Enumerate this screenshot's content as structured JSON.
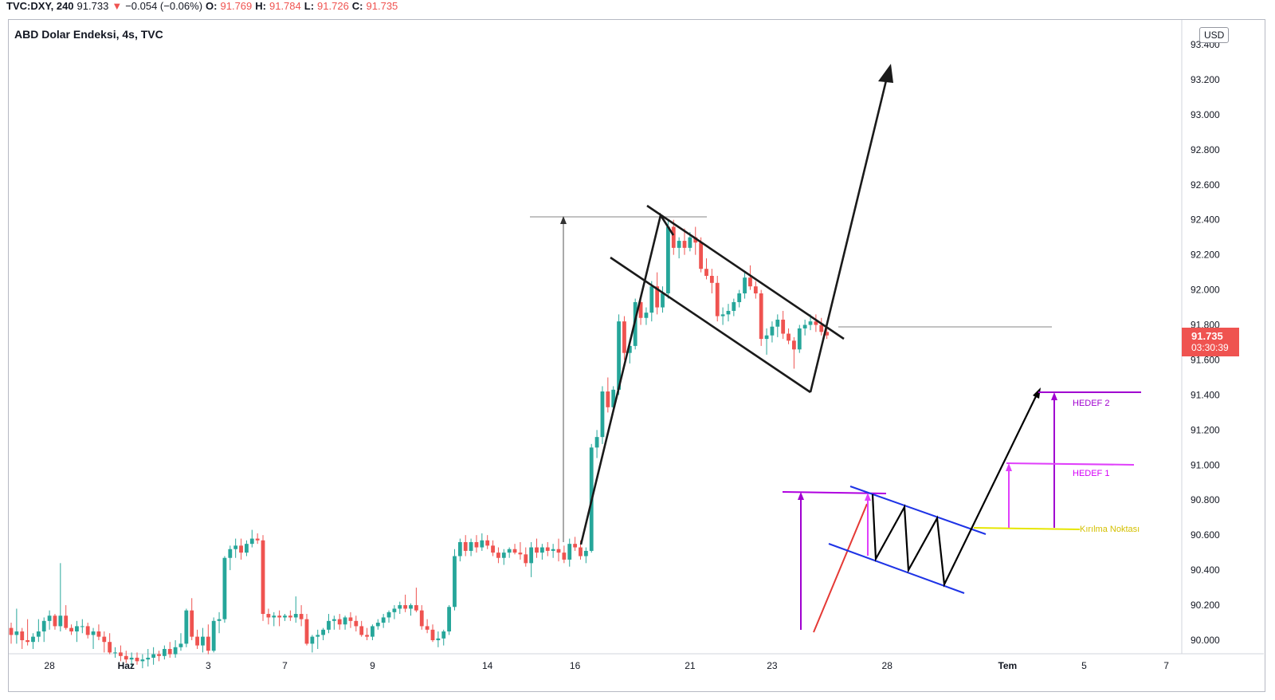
{
  "header": {
    "symbol": "TVC:DXY, 240",
    "last": "91.733",
    "arrow": "▼",
    "change": "−0.054 (−0.06%)",
    "o_label": "O:",
    "o": "91.769",
    "h_label": "H:",
    "h": "91.784",
    "l_label": "L:",
    "l": "91.726",
    "c_label": "C:",
    "c": "91.735"
  },
  "chart_title": "ABD Dolar Endeksi, 4s, TVC",
  "currency": "USD",
  "price_tag": {
    "price": "91.735",
    "countdown": "03:30:39"
  },
  "colors": {
    "up": "#26a69a",
    "down": "#ef5350",
    "purple": "#9c27b0",
    "magenta": "#e040fb",
    "blue": "#1e33e6",
    "yellow": "#e6e600"
  },
  "chart_data": {
    "type": "candlestick",
    "title": "ABD Dolar Endeksi, 4s, TVC",
    "ylim": [
      89.93,
      93.45
    ],
    "y_ticks": [
      "93.400",
      "93.200",
      "93.000",
      "92.800",
      "92.600",
      "92.400",
      "92.200",
      "92.000",
      "91.800",
      "91.600",
      "91.400",
      "91.200",
      "91.000",
      "90.800",
      "90.600",
      "90.400",
      "90.200",
      "90.000"
    ],
    "x_ticks": [
      "28",
      "Haz",
      "3",
      "7",
      "9",
      "14",
      "16",
      "21",
      "23",
      "28",
      "Tem",
      "5",
      "7"
    ],
    "x_tick_index": [
      7,
      21,
      36,
      50,
      66,
      87,
      103,
      124,
      139,
      160,
      182,
      196,
      211
    ],
    "candles": [
      [
        90.07,
        90.1,
        89.98,
        90.03
      ],
      [
        90.03,
        90.18,
        89.98,
        90.05
      ],
      [
        90.05,
        90.07,
        89.95,
        90.0
      ],
      [
        90.0,
        90.12,
        89.97,
        89.99
      ],
      [
        89.99,
        90.04,
        89.95,
        90.02
      ],
      [
        90.02,
        90.12,
        89.99,
        90.05
      ],
      [
        90.05,
        90.13,
        89.99,
        90.11
      ],
      [
        90.11,
        90.17,
        90.06,
        90.14
      ],
      [
        90.14,
        90.15,
        90.06,
        90.08
      ],
      [
        90.08,
        90.44,
        90.05,
        90.14
      ],
      [
        90.14,
        90.2,
        90.06,
        90.07
      ],
      [
        90.07,
        90.09,
        90.03,
        90.05
      ],
      [
        90.05,
        90.11,
        89.99,
        90.08
      ],
      [
        90.08,
        90.12,
        90.04,
        90.08
      ],
      [
        90.08,
        90.1,
        90.01,
        90.03
      ],
      [
        90.03,
        90.07,
        89.95,
        90.05
      ],
      [
        90.05,
        90.09,
        90.0,
        90.02
      ],
      [
        90.02,
        90.05,
        89.93,
        89.99
      ],
      [
        89.99,
        90.04,
        89.92,
        89.93
      ],
      [
        89.93,
        89.96,
        89.9,
        89.93
      ],
      [
        89.93,
        89.97,
        89.88,
        89.91
      ],
      [
        89.91,
        89.94,
        89.87,
        89.89
      ],
      [
        89.89,
        89.93,
        89.85,
        89.9
      ],
      [
        89.9,
        89.93,
        89.86,
        89.88
      ],
      [
        89.88,
        89.92,
        89.84,
        89.89
      ],
      [
        89.89,
        89.95,
        89.85,
        89.9
      ],
      [
        89.9,
        89.96,
        89.86,
        89.92
      ],
      [
        89.92,
        89.94,
        89.88,
        89.91
      ],
      [
        89.91,
        89.97,
        89.89,
        89.95
      ],
      [
        89.95,
        89.99,
        89.9,
        89.92
      ],
      [
        89.92,
        90.0,
        89.9,
        89.96
      ],
      [
        89.96,
        90.04,
        89.94,
        89.98
      ],
      [
        89.98,
        90.18,
        89.96,
        90.17
      ],
      [
        90.17,
        90.24,
        90.0,
        90.02
      ],
      [
        90.02,
        90.06,
        89.95,
        89.97
      ],
      [
        89.97,
        90.07,
        89.93,
        90.02
      ],
      [
        90.02,
        90.09,
        89.92,
        89.94
      ],
      [
        89.94,
        90.13,
        89.93,
        90.11
      ],
      [
        90.11,
        90.16,
        90.04,
        90.12
      ],
      [
        90.12,
        90.48,
        90.1,
        90.47
      ],
      [
        90.47,
        90.54,
        90.4,
        90.52
      ],
      [
        90.52,
        90.58,
        90.47,
        90.54
      ],
      [
        90.54,
        90.58,
        90.46,
        90.5
      ],
      [
        90.5,
        90.57,
        90.48,
        90.55
      ],
      [
        90.55,
        90.63,
        90.53,
        90.58
      ],
      [
        90.58,
        90.61,
        90.55,
        90.57
      ],
      [
        90.57,
        90.6,
        90.11,
        90.15
      ],
      [
        90.15,
        90.18,
        90.09,
        90.13
      ],
      [
        90.13,
        90.16,
        90.08,
        90.14
      ],
      [
        90.14,
        90.17,
        90.08,
        90.13
      ],
      [
        90.13,
        90.15,
        90.11,
        90.14
      ],
      [
        90.14,
        90.17,
        90.11,
        90.13
      ],
      [
        90.13,
        90.25,
        90.1,
        90.15
      ],
      [
        90.15,
        90.2,
        90.08,
        90.12
      ],
      [
        90.12,
        90.15,
        89.97,
        89.98
      ],
      [
        89.98,
        90.03,
        89.93,
        90.02
      ],
      [
        90.02,
        90.06,
        89.95,
        90.03
      ],
      [
        90.03,
        90.07,
        90.0,
        90.06
      ],
      [
        90.06,
        90.15,
        90.04,
        90.11
      ],
      [
        90.11,
        90.14,
        90.06,
        90.12
      ],
      [
        90.12,
        90.15,
        90.06,
        90.09
      ],
      [
        90.09,
        90.14,
        90.06,
        90.13
      ],
      [
        90.13,
        90.16,
        90.07,
        90.11
      ],
      [
        90.11,
        90.14,
        90.05,
        90.08
      ],
      [
        90.08,
        90.11,
        90.02,
        90.03
      ],
      [
        90.03,
        90.07,
        90.0,
        90.02
      ],
      [
        90.02,
        90.09,
        90.0,
        90.08
      ],
      [
        90.08,
        90.12,
        90.06,
        90.1
      ],
      [
        90.1,
        90.15,
        90.07,
        90.13
      ],
      [
        90.13,
        90.17,
        90.1,
        90.16
      ],
      [
        90.16,
        90.2,
        90.12,
        90.18
      ],
      [
        90.18,
        90.22,
        90.15,
        90.2
      ],
      [
        90.2,
        90.26,
        90.16,
        90.18
      ],
      [
        90.18,
        90.21,
        90.14,
        90.2
      ],
      [
        90.2,
        90.3,
        90.16,
        90.17
      ],
      [
        90.17,
        90.2,
        90.06,
        90.08
      ],
      [
        90.08,
        90.12,
        90.04,
        90.06
      ],
      [
        90.06,
        90.09,
        89.99,
        90.0
      ],
      [
        90.0,
        90.05,
        89.96,
        90.01
      ],
      [
        90.01,
        90.06,
        89.97,
        90.05
      ],
      [
        90.05,
        90.2,
        90.03,
        90.19
      ],
      [
        90.19,
        90.52,
        90.17,
        90.48
      ],
      [
        90.48,
        90.58,
        90.45,
        90.56
      ],
      [
        90.56,
        90.6,
        90.48,
        90.51
      ],
      [
        90.51,
        90.58,
        90.48,
        90.56
      ],
      [
        90.56,
        90.6,
        90.5,
        90.53
      ],
      [
        90.53,
        90.61,
        90.51,
        90.57
      ],
      [
        90.57,
        90.6,
        90.52,
        90.54
      ],
      [
        90.54,
        90.57,
        90.48,
        90.5
      ],
      [
        90.5,
        90.53,
        90.44,
        90.47
      ],
      [
        90.47,
        90.52,
        90.43,
        90.5
      ],
      [
        90.5,
        90.53,
        90.47,
        90.52
      ],
      [
        90.52,
        90.55,
        90.49,
        90.5
      ],
      [
        90.5,
        90.56,
        90.46,
        90.49
      ],
      [
        90.49,
        90.53,
        90.42,
        90.44
      ],
      [
        90.44,
        90.56,
        90.36,
        90.53
      ],
      [
        90.53,
        90.58,
        90.47,
        90.5
      ],
      [
        90.5,
        90.55,
        90.46,
        90.53
      ],
      [
        90.53,
        90.56,
        90.48,
        90.51
      ],
      [
        90.51,
        90.55,
        90.47,
        90.52
      ],
      [
        90.52,
        90.58,
        90.45,
        90.5
      ],
      [
        90.5,
        90.54,
        90.44,
        90.46
      ],
      [
        90.46,
        90.58,
        90.42,
        90.55
      ],
      [
        90.55,
        90.59,
        90.51,
        90.53
      ],
      [
        90.53,
        90.57,
        90.46,
        90.48
      ],
      [
        90.48,
        90.53,
        90.44,
        90.51
      ],
      [
        90.51,
        91.12,
        90.5,
        91.1
      ],
      [
        91.1,
        91.2,
        91.04,
        91.16
      ],
      [
        91.16,
        91.45,
        91.12,
        91.42
      ],
      [
        91.42,
        91.5,
        91.3,
        91.33
      ],
      [
        91.33,
        91.45,
        91.3,
        91.43
      ],
      [
        91.43,
        91.86,
        91.4,
        91.82
      ],
      [
        91.82,
        91.85,
        91.6,
        91.64
      ],
      [
        91.64,
        91.72,
        91.58,
        91.68
      ],
      [
        91.68,
        91.95,
        91.66,
        91.93
      ],
      [
        91.93,
        91.96,
        91.8,
        91.84
      ],
      [
        91.84,
        91.9,
        91.8,
        91.87
      ],
      [
        91.87,
        92.05,
        91.82,
        92.02
      ],
      [
        92.02,
        92.1,
        91.86,
        91.9
      ],
      [
        91.9,
        92.02,
        91.87,
        91.98
      ],
      [
        91.98,
        92.4,
        91.95,
        92.36
      ],
      [
        92.36,
        92.4,
        92.2,
        92.24
      ],
      [
        92.24,
        92.3,
        92.18,
        92.28
      ],
      [
        92.28,
        92.35,
        92.2,
        92.24
      ],
      [
        92.24,
        92.33,
        92.22,
        92.3
      ],
      [
        92.3,
        92.36,
        92.2,
        92.27
      ],
      [
        92.27,
        92.3,
        92.1,
        92.12
      ],
      [
        92.12,
        92.18,
        92.06,
        92.08
      ],
      [
        92.08,
        92.12,
        91.98,
        92.04
      ],
      [
        92.04,
        92.08,
        91.82,
        91.85
      ],
      [
        91.85,
        91.9,
        91.8,
        91.86
      ],
      [
        91.86,
        91.92,
        91.82,
        91.88
      ],
      [
        91.88,
        91.95,
        91.85,
        91.93
      ],
      [
        91.93,
        92.0,
        91.9,
        91.98
      ],
      [
        91.98,
        92.1,
        91.95,
        92.07
      ],
      [
        92.07,
        92.14,
        92.0,
        92.02
      ],
      [
        92.02,
        92.05,
        91.95,
        91.98
      ],
      [
        91.98,
        92.0,
        91.68,
        91.72
      ],
      [
        91.72,
        91.78,
        91.63,
        91.74
      ],
      [
        91.74,
        91.82,
        91.7,
        91.79
      ],
      [
        91.79,
        91.86,
        91.73,
        91.83
      ],
      [
        91.83,
        91.88,
        91.72,
        91.75
      ],
      [
        91.75,
        91.78,
        91.69,
        91.71
      ],
      [
        91.71,
        91.73,
        91.55,
        91.66
      ],
      [
        91.66,
        91.8,
        91.64,
        91.78
      ],
      [
        91.78,
        91.83,
        91.74,
        91.8
      ],
      [
        91.8,
        91.86,
        91.77,
        91.82
      ],
      [
        91.82,
        91.86,
        91.76,
        91.8
      ],
      [
        91.8,
        91.84,
        91.74,
        91.76
      ],
      [
        91.76,
        91.79,
        91.72,
        91.74
      ]
    ]
  },
  "annotations": {
    "hedef2": "HEDEF 2",
    "hedef1": "HEDEF 1",
    "kirilma": "Kırılma Noktası"
  }
}
